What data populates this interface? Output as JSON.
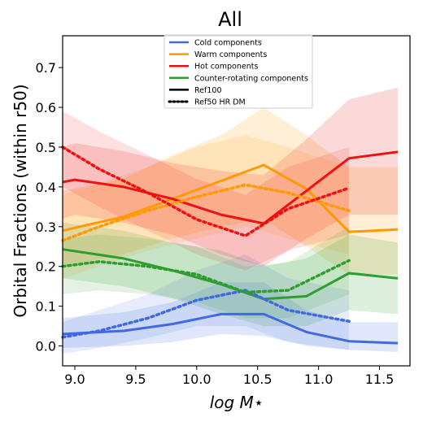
{
  "chart_data": {
    "type": "line",
    "title": "All",
    "xlabel": "log M⋆",
    "ylabel": "Orbital Fractions (within r50)",
    "xlim": [
      8.9,
      11.75
    ],
    "ylim": [
      -0.05,
      0.78
    ],
    "xticks": [
      9.0,
      9.5,
      10.0,
      10.5,
      11.0,
      11.5
    ],
    "xtick_labels": [
      "9.0",
      "9.5",
      "10.0",
      "10.5",
      "11.0",
      "11.5"
    ],
    "yticks": [
      0.0,
      0.1,
      0.2,
      0.3,
      0.4,
      0.5,
      0.6,
      0.7
    ],
    "ytick_labels": [
      "0.0",
      "0.1",
      "0.2",
      "0.3",
      "0.4",
      "0.5",
      "0.6",
      "0.7"
    ],
    "grid": false,
    "legend_position": "top-center",
    "legend": [
      {
        "label": "Cold components",
        "color": "#4169e1",
        "style": "solid"
      },
      {
        "label": "Warm components",
        "color": "#ff9900",
        "style": "solid"
      },
      {
        "label": "Hot components",
        "color": "#ee1111",
        "style": "solid"
      },
      {
        "label": "Counter-rotating components",
        "color": "#2e9e2e",
        "style": "solid"
      },
      {
        "label": "Ref100",
        "color": "#000000",
        "style": "solid"
      },
      {
        "label": "Ref50 HR DM",
        "color": "#000000",
        "style": "dotted"
      }
    ],
    "series": [
      {
        "component": "cold",
        "run": "Ref100",
        "color": "#4169e1",
        "style": "solid",
        "x": [
          8.9,
          9.4,
          9.8,
          10.2,
          10.55,
          10.9,
          11.25,
          11.65
        ],
        "y": [
          0.03,
          0.038,
          0.055,
          0.08,
          0.08,
          0.035,
          0.012,
          0.007
        ],
        "lower": [
          -0.005,
          0.0,
          0.01,
          0.03,
          0.025,
          0.0,
          -0.01,
          -0.015
        ],
        "upper": [
          0.07,
          0.085,
          0.11,
          0.16,
          0.16,
          0.09,
          0.06,
          0.06
        ]
      },
      {
        "component": "warm",
        "run": "Ref100",
        "color": "#ff9900",
        "style": "solid",
        "x": [
          8.9,
          9.4,
          9.8,
          10.2,
          10.55,
          10.9,
          11.25,
          11.65
        ],
        "y": [
          0.29,
          0.325,
          0.37,
          0.415,
          0.455,
          0.395,
          0.287,
          0.293
        ],
        "lower": [
          0.2,
          0.23,
          0.27,
          0.3,
          0.32,
          0.25,
          0.18,
          0.18
        ],
        "upper": [
          0.39,
          0.42,
          0.48,
          0.53,
          0.6,
          0.53,
          0.45,
          0.45
        ]
      },
      {
        "component": "hot",
        "run": "Ref100",
        "color": "#ee1111",
        "style": "solid",
        "x": [
          8.9,
          9.0,
          9.4,
          9.8,
          10.2,
          10.55,
          10.9,
          11.25,
          11.65
        ],
        "y": [
          0.412,
          0.418,
          0.4,
          0.37,
          0.33,
          0.308,
          0.39,
          0.472,
          0.488
        ],
        "lower": [
          0.32,
          0.33,
          0.31,
          0.28,
          0.23,
          0.2,
          0.27,
          0.33,
          0.33
        ],
        "upper": [
          0.5,
          0.51,
          0.49,
          0.46,
          0.44,
          0.43,
          0.52,
          0.62,
          0.65
        ]
      },
      {
        "component": "counter-rotating",
        "run": "Ref100",
        "color": "#2e9e2e",
        "style": "solid",
        "x": [
          8.9,
          9.4,
          9.8,
          10.2,
          10.55,
          10.9,
          11.25,
          11.65
        ],
        "y": [
          0.243,
          0.22,
          0.19,
          0.155,
          0.118,
          0.125,
          0.183,
          0.17
        ],
        "lower": [
          0.17,
          0.15,
          0.12,
          0.08,
          0.05,
          0.05,
          0.09,
          0.08
        ],
        "upper": [
          0.31,
          0.29,
          0.26,
          0.24,
          0.2,
          0.22,
          0.28,
          0.26
        ]
      },
      {
        "component": "cold",
        "run": "Ref50 HR DM",
        "color": "#4169e1",
        "style": "dotted",
        "x": [
          8.9,
          9.2,
          9.6,
          10.0,
          10.4,
          10.75,
          11.25
        ],
        "y": [
          0.022,
          0.038,
          0.07,
          0.115,
          0.14,
          0.09,
          0.062
        ],
        "lower": [
          -0.02,
          -0.005,
          0.02,
          0.05,
          0.05,
          0.01,
          -0.01
        ],
        "upper": [
          0.06,
          0.09,
          0.13,
          0.19,
          0.23,
          0.17,
          0.14
        ]
      },
      {
        "component": "warm",
        "run": "Ref50 HR DM",
        "color": "#ff9900",
        "style": "dotted",
        "x": [
          8.9,
          9.2,
          9.6,
          10.0,
          10.4,
          10.75,
          11.25
        ],
        "y": [
          0.265,
          0.3,
          0.34,
          0.375,
          0.405,
          0.385,
          0.34
        ],
        "lower": [
          0.17,
          0.2,
          0.24,
          0.27,
          0.3,
          0.27,
          0.23
        ],
        "upper": [
          0.38,
          0.41,
          0.45,
          0.5,
          0.53,
          0.5,
          0.45
        ]
      },
      {
        "component": "hot",
        "run": "Ref50 HR DM",
        "color": "#ee1111",
        "style": "dotted",
        "x": [
          8.9,
          9.2,
          9.6,
          10.0,
          10.4,
          10.75,
          11.25
        ],
        "y": [
          0.5,
          0.445,
          0.385,
          0.318,
          0.277,
          0.345,
          0.397
        ],
        "lower": [
          0.4,
          0.35,
          0.29,
          0.23,
          0.19,
          0.24,
          0.28
        ],
        "upper": [
          0.59,
          0.54,
          0.48,
          0.42,
          0.38,
          0.45,
          0.5
        ]
      },
      {
        "component": "counter-rotating",
        "run": "Ref50 HR DM",
        "color": "#2e9e2e",
        "style": "dotted",
        "x": [
          8.9,
          9.2,
          9.6,
          10.0,
          10.4,
          10.75,
          11.25
        ],
        "y": [
          0.2,
          0.212,
          0.2,
          0.18,
          0.135,
          0.14,
          0.215
        ],
        "lower": [
          0.13,
          0.14,
          0.13,
          0.11,
          0.07,
          0.07,
          0.13
        ],
        "upper": [
          0.27,
          0.28,
          0.27,
          0.25,
          0.2,
          0.21,
          0.3
        ]
      }
    ]
  }
}
